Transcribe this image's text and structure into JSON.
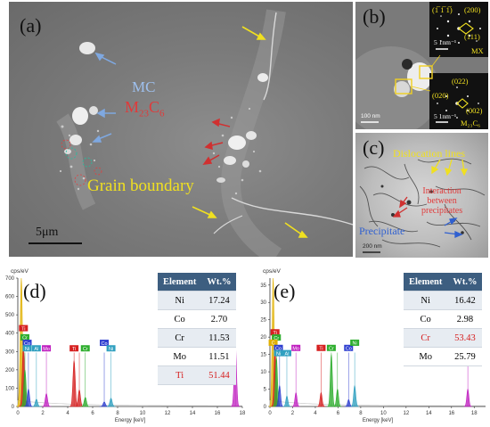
{
  "panel_a": {
    "label": "(a)",
    "mc": "MC",
    "m23c6_base": "M",
    "m23c6_sub1": "23",
    "m23c6_mid": "C",
    "m23c6_sub2": "6",
    "grain_boundary": "Grain boundary",
    "scale": "5μm"
  },
  "panel_b": {
    "label": "(b)",
    "top_indices": [
      "(1̅ 1̅ 1̅)",
      "(200)",
      "(111)"
    ],
    "top_scale": "5 1nm⁻¹",
    "top_phase": "MX",
    "bottom_indices": [
      "(022)",
      "(020)",
      "(002)"
    ],
    "bottom_scale": "5 1nm⁻¹",
    "bottom_phase": "M₂₃C₆",
    "scale": "100 nm"
  },
  "panel_c": {
    "label": "(c)",
    "dislocation": "Dislocation lines",
    "interaction_lines": [
      "Interaction",
      "between",
      "precipitates"
    ],
    "precipitate": "Precipitate",
    "scale": "200 nm"
  },
  "eds_d": {
    "label": "(d)",
    "unit": "cps/eV",
    "xlabel": "Energy [keV]",
    "table_header": [
      "Element",
      "Wt.%"
    ],
    "rows": [
      {
        "element": "Ni",
        "wt": "17.24"
      },
      {
        "element": "Co",
        "wt": "2.70"
      },
      {
        "element": "Cr",
        "wt": "11.53"
      },
      {
        "element": "Mo",
        "wt": "11.51"
      },
      {
        "element": "Ti",
        "wt": "51.44"
      }
    ],
    "highlight_color": "#d62020"
  },
  "eds_e": {
    "label": "(e)",
    "unit": "cps/eV",
    "xlabel": "Energy [keV]",
    "table_header": [
      "Element",
      "Wt.%"
    ],
    "rows": [
      {
        "element": "Ni",
        "wt": "16.42"
      },
      {
        "element": "Co",
        "wt": "2.98"
      },
      {
        "element": "Cr",
        "wt": "53.43"
      },
      {
        "element": "Mo",
        "wt": "25.79"
      }
    ],
    "highlight_color": "#d62020"
  },
  "chart_data": [
    {
      "type": "line",
      "title": "",
      "xlabel": "Energy [keV]",
      "ylabel": "cps/eV",
      "xlim": [
        0,
        18
      ],
      "ylim": [
        0,
        700
      ],
      "xticks": [
        "0",
        "2",
        "4",
        "6",
        "8",
        "10",
        "12",
        "14",
        "16",
        "18"
      ],
      "yticks": [
        "0",
        "100",
        "200",
        "300",
        "400",
        "500",
        "600",
        "700"
      ],
      "peaks": [
        {
          "x": 0.28,
          "y": 700,
          "color": "#e0b000"
        },
        {
          "x": 0.45,
          "y": 330,
          "color": "#d62020"
        },
        {
          "x": 0.57,
          "y": 200,
          "color": "#2eae2e"
        },
        {
          "x": 0.85,
          "y": 95,
          "color": "#3040d0"
        },
        {
          "x": 1.49,
          "y": 40,
          "color": "#30a0c0"
        },
        {
          "x": 2.29,
          "y": 70,
          "color": "#c020c0"
        },
        {
          "x": 4.51,
          "y": 250,
          "color": "#d62020"
        },
        {
          "x": 4.93,
          "y": 90,
          "color": "#d62020"
        },
        {
          "x": 5.41,
          "y": 50,
          "color": "#2eae2e"
        },
        {
          "x": 6.93,
          "y": 25,
          "color": "#3040d0"
        },
        {
          "x": 7.47,
          "y": 45,
          "color": "#30a0c0"
        },
        {
          "x": 17.44,
          "y": 340,
          "color": "#c020c0"
        }
      ],
      "element_tags": [
        {
          "label": "Ti",
          "x": 0.45,
          "y": 420,
          "color": "#d62020"
        },
        {
          "label": "Cr",
          "x": 0.57,
          "y": 370,
          "color": "#2eae2e"
        },
        {
          "label": "Co",
          "x": 0.75,
          "y": 340,
          "color": "#3040d0"
        },
        {
          "label": "Ni",
          "x": 0.75,
          "y": 310,
          "color": "#30a0c0"
        },
        {
          "label": "Al",
          "x": 1.49,
          "y": 310,
          "color": "#30a0c0"
        },
        {
          "label": "Mo",
          "x": 2.29,
          "y": 310,
          "color": "#c020c0"
        },
        {
          "label": "Ti",
          "x": 4.51,
          "y": 310,
          "color": "#d62020"
        },
        {
          "label": "Cr",
          "x": 5.41,
          "y": 310,
          "color": "#2eae2e"
        },
        {
          "label": "Co",
          "x": 6.93,
          "y": 340,
          "color": "#3040d0"
        },
        {
          "label": "Ni",
          "x": 7.47,
          "y": 310,
          "color": "#30a0c0"
        }
      ]
    },
    {
      "type": "line",
      "title": "",
      "xlabel": "Energy [keV]",
      "ylabel": "cps/eV",
      "xlim": [
        0,
        19
      ],
      "ylim": [
        0,
        37
      ],
      "xticks": [
        "0",
        "2",
        "4",
        "6",
        "8",
        "10",
        "12",
        "14",
        "16",
        "18"
      ],
      "yticks": [
        "0",
        "5",
        "10",
        "15",
        "20",
        "25",
        "30",
        "35"
      ],
      "peaks": [
        {
          "x": 0.28,
          "y": 37,
          "color": "#e0b000"
        },
        {
          "x": 0.45,
          "y": 17,
          "color": "#d62020"
        },
        {
          "x": 0.57,
          "y": 14,
          "color": "#2eae2e"
        },
        {
          "x": 0.85,
          "y": 6,
          "color": "#3040d0"
        },
        {
          "x": 1.49,
          "y": 3,
          "color": "#30a0c0"
        },
        {
          "x": 2.29,
          "y": 4,
          "color": "#c020c0"
        },
        {
          "x": 4.51,
          "y": 4,
          "color": "#d62020"
        },
        {
          "x": 5.41,
          "y": 15,
          "color": "#2eae2e"
        },
        {
          "x": 5.95,
          "y": 5,
          "color": "#2eae2e"
        },
        {
          "x": 6.93,
          "y": 2,
          "color": "#3040d0"
        },
        {
          "x": 7.47,
          "y": 6,
          "color": "#30a0c0"
        },
        {
          "x": 17.44,
          "y": 5,
          "color": "#c020c0"
        }
      ],
      "element_tags": [
        {
          "label": "Ti",
          "x": 0.45,
          "y": 21,
          "color": "#d62020"
        },
        {
          "label": "Cr",
          "x": 0.57,
          "y": 19.5,
          "color": "#2eae2e"
        },
        {
          "label": "C",
          "x": 0.28,
          "y": 18,
          "color": "#e0b000"
        },
        {
          "label": "Co",
          "x": 0.75,
          "y": 16.5,
          "color": "#3040d0"
        },
        {
          "label": "Ni",
          "x": 0.75,
          "y": 15,
          "color": "#30a0c0"
        },
        {
          "label": "Al",
          "x": 1.49,
          "y": 15,
          "color": "#30a0c0"
        },
        {
          "label": "Mo",
          "x": 2.29,
          "y": 16.5,
          "color": "#c020c0"
        },
        {
          "label": "Ti",
          "x": 4.51,
          "y": 16.5,
          "color": "#d62020"
        },
        {
          "label": "Cr",
          "x": 5.41,
          "y": 16.5,
          "color": "#2eae2e"
        },
        {
          "label": "Co",
          "x": 6.93,
          "y": 16.5,
          "color": "#3040d0"
        },
        {
          "label": "Ni",
          "x": 7.47,
          "y": 18,
          "color": "#2eae2e"
        },
        {
          "label": "Mo",
          "x": 17.44,
          "y": 15,
          "color": "#c020c0"
        }
      ]
    }
  ]
}
